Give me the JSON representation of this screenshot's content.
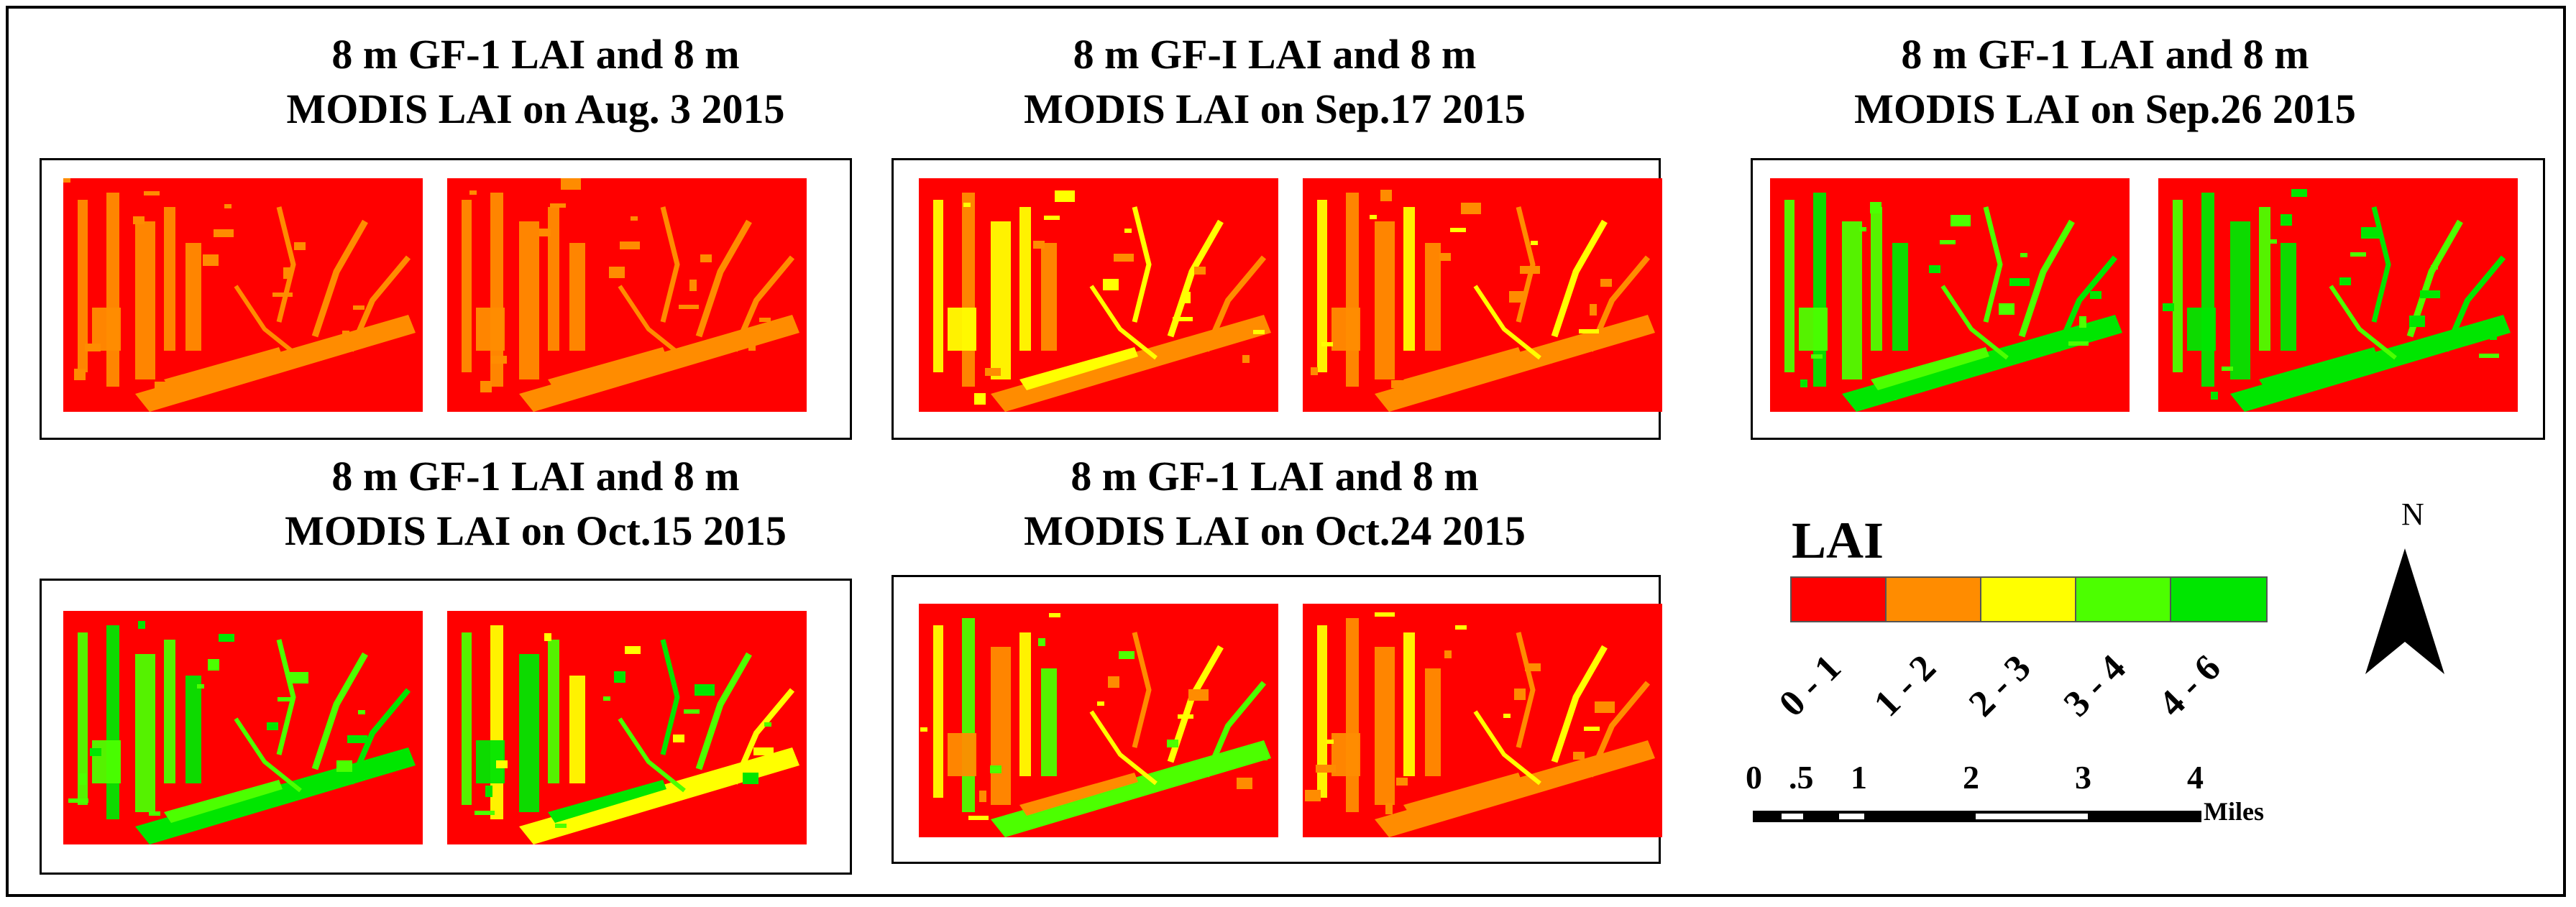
{
  "panels": [
    {
      "title_line1": "8 m GF-1 LAI and 8 m",
      "title_line2": "MODIS LAI on Aug. 3 2015"
    },
    {
      "title_line1": "8 m GF-I LAI and 8 m",
      "title_line2": "MODIS LAI on Sep.17 2015"
    },
    {
      "title_line1": "8 m GF-1 LAI and 8 m",
      "title_line2": "MODIS LAI on Sep.26 2015"
    },
    {
      "title_line1": "8 m GF-1 LAI and 8 m",
      "title_line2": "MODIS LAI on Oct.15 2015"
    },
    {
      "title_line1": "8 m GF-1 LAI and 8 m",
      "title_line2": "MODIS LAI on Oct.24 2015"
    }
  ],
  "legend": {
    "title": "LAI",
    "classes": [
      {
        "label": "0 - 1",
        "color": "#ff0000"
      },
      {
        "label": "1 - 2",
        "color": "#ff8c00"
      },
      {
        "label": "2 - 3",
        "color": "#ffff00"
      },
      {
        "label": "3 - 4",
        "color": "#4cff00"
      },
      {
        "label": "4 - 6",
        "color": "#00e600"
      }
    ]
  },
  "north_arrow": {
    "label": "N",
    "icon": "north-arrow-icon"
  },
  "scale_bar": {
    "ticks": [
      "0",
      ".5",
      "1",
      "2",
      "3",
      "4"
    ],
    "unit": "Miles"
  }
}
